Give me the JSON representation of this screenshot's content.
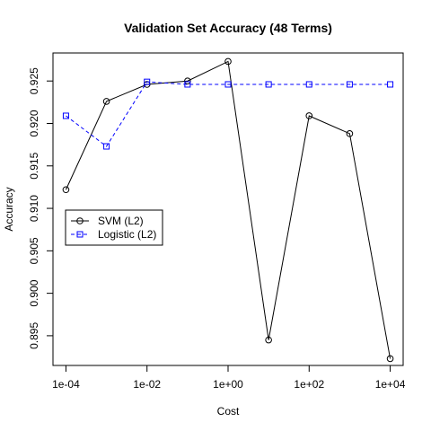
{
  "chart_data": {
    "type": "line",
    "title": "Validation Set Accuracy (48 Terms)",
    "xlabel": "Cost",
    "ylabel": "Accuracy",
    "x_scale": "log",
    "x": [
      0.0001,
      0.001,
      0.01,
      0.1,
      1,
      10,
      100,
      1000,
      10000
    ],
    "x_ticks": [
      0.0001,
      0.01,
      1,
      100,
      10000
    ],
    "x_tick_labels": [
      "1e-04",
      "1e-02",
      "1e+00",
      "1e+02",
      "1e+04"
    ],
    "y_ticks": [
      0.895,
      0.9,
      0.905,
      0.91,
      0.915,
      0.92,
      0.925
    ],
    "y_tick_labels": [
      "0.895",
      "0.900",
      "0.905",
      "0.910",
      "0.915",
      "0.920",
      "0.925"
    ],
    "ylim": [
      0.8915,
      0.9283
    ],
    "grid": false,
    "legend_position": "center-left",
    "series": [
      {
        "name": "SVM (L2)",
        "values": [
          0.9122,
          0.9226,
          0.9246,
          0.925,
          0.9273,
          0.8945,
          0.9209,
          0.9188,
          0.8923
        ],
        "color": "#000000",
        "line_style": "solid",
        "marker": "circle"
      },
      {
        "name": "Logistic (L2)",
        "values": [
          0.9209,
          0.9173,
          0.9249,
          0.9246,
          0.9246,
          0.9246,
          0.9246,
          0.9246,
          0.9246
        ],
        "color": "#0000ff",
        "line_style": "dashed",
        "marker": "square"
      }
    ]
  }
}
